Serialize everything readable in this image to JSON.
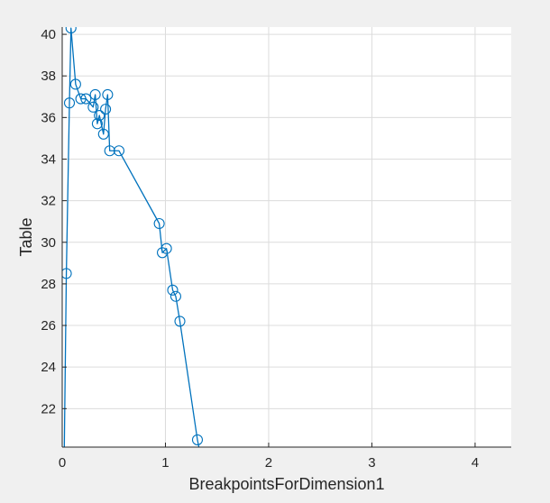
{
  "chart_data": {
    "type": "line",
    "title": "",
    "xlabel": "BreakpointsForDimension1",
    "ylabel": "Table",
    "xlim": [
      0,
      4.35
    ],
    "ylim": [
      20.15,
      40.35
    ],
    "xticks": [
      0,
      1,
      2,
      3,
      4
    ],
    "yticks": [
      22,
      24,
      26,
      28,
      30,
      32,
      34,
      36,
      38,
      40
    ],
    "grid": true,
    "legend": "none",
    "marker": "circle",
    "colors": {
      "series": "#0072bd",
      "grid": "#dcdcdc",
      "axis": "#262626",
      "plot_bg": "#ffffff",
      "figure_bg": "#f0f0f0"
    },
    "series": [
      {
        "x": [
          0.02,
          0.04,
          0.07,
          0.085,
          0.13,
          0.18,
          0.23,
          0.3,
          0.32,
          0.34,
          0.36,
          0.4,
          0.42,
          0.44,
          0.46,
          0.49,
          0.55,
          0.94,
          0.97,
          1.01,
          1.07,
          1.1,
          1.14,
          1.31,
          1.33
        ],
        "y": [
          20.0,
          28.5,
          36.7,
          40.3,
          37.6,
          36.9,
          36.9,
          36.5,
          37.1,
          35.7,
          36.1,
          35.2,
          36.4,
          37.1,
          34.4,
          34.4,
          34.4,
          30.9,
          29.5,
          29.7,
          27.7,
          27.4,
          26.2,
          20.5,
          20.0
        ],
        "markers": [
          false,
          true,
          true,
          true,
          true,
          true,
          true,
          true,
          true,
          true,
          true,
          true,
          true,
          true,
          true,
          false,
          true,
          true,
          true,
          true,
          true,
          true,
          true,
          true,
          false
        ]
      }
    ]
  }
}
